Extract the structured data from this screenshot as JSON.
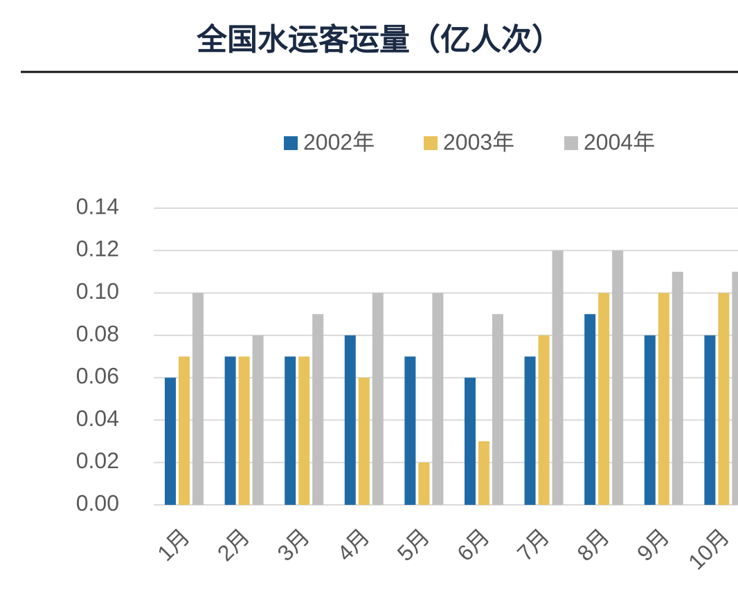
{
  "chart_data": {
    "type": "bar",
    "title": "全国水运客运量（亿人次）",
    "categories": [
      "1月",
      "2月",
      "3月",
      "4月",
      "5月",
      "6月",
      "7月",
      "8月",
      "9月",
      "10月"
    ],
    "series": [
      {
        "name": "2002年",
        "color": "#1f6aa5",
        "values": [
          0.06,
          0.07,
          0.07,
          0.08,
          0.07,
          0.06,
          0.07,
          0.09,
          0.08,
          0.08
        ]
      },
      {
        "name": "2003年",
        "color": "#e8c25a",
        "values": [
          0.07,
          0.07,
          0.07,
          0.06,
          0.02,
          0.03,
          0.08,
          0.1,
          0.1,
          0.1
        ]
      },
      {
        "name": "2004年",
        "color": "#bfbfbf",
        "values": [
          0.1,
          0.08,
          0.09,
          0.1,
          0.1,
          0.09,
          0.12,
          0.12,
          0.11,
          0.11
        ]
      }
    ],
    "ylim": [
      0,
      0.14
    ],
    "yticks": [
      {
        "value": 0,
        "label": "0.00"
      },
      {
        "value": 0.02,
        "label": "0.02"
      },
      {
        "value": 0.04,
        "label": "0.04"
      },
      {
        "value": 0.06,
        "label": "0.06"
      },
      {
        "value": 0.08,
        "label": "0.08"
      },
      {
        "value": 0.1,
        "label": "0.10"
      },
      {
        "value": 0.12,
        "label": "0.12"
      },
      {
        "value": 0.14,
        "label": "0.14"
      }
    ],
    "grid": true
  }
}
